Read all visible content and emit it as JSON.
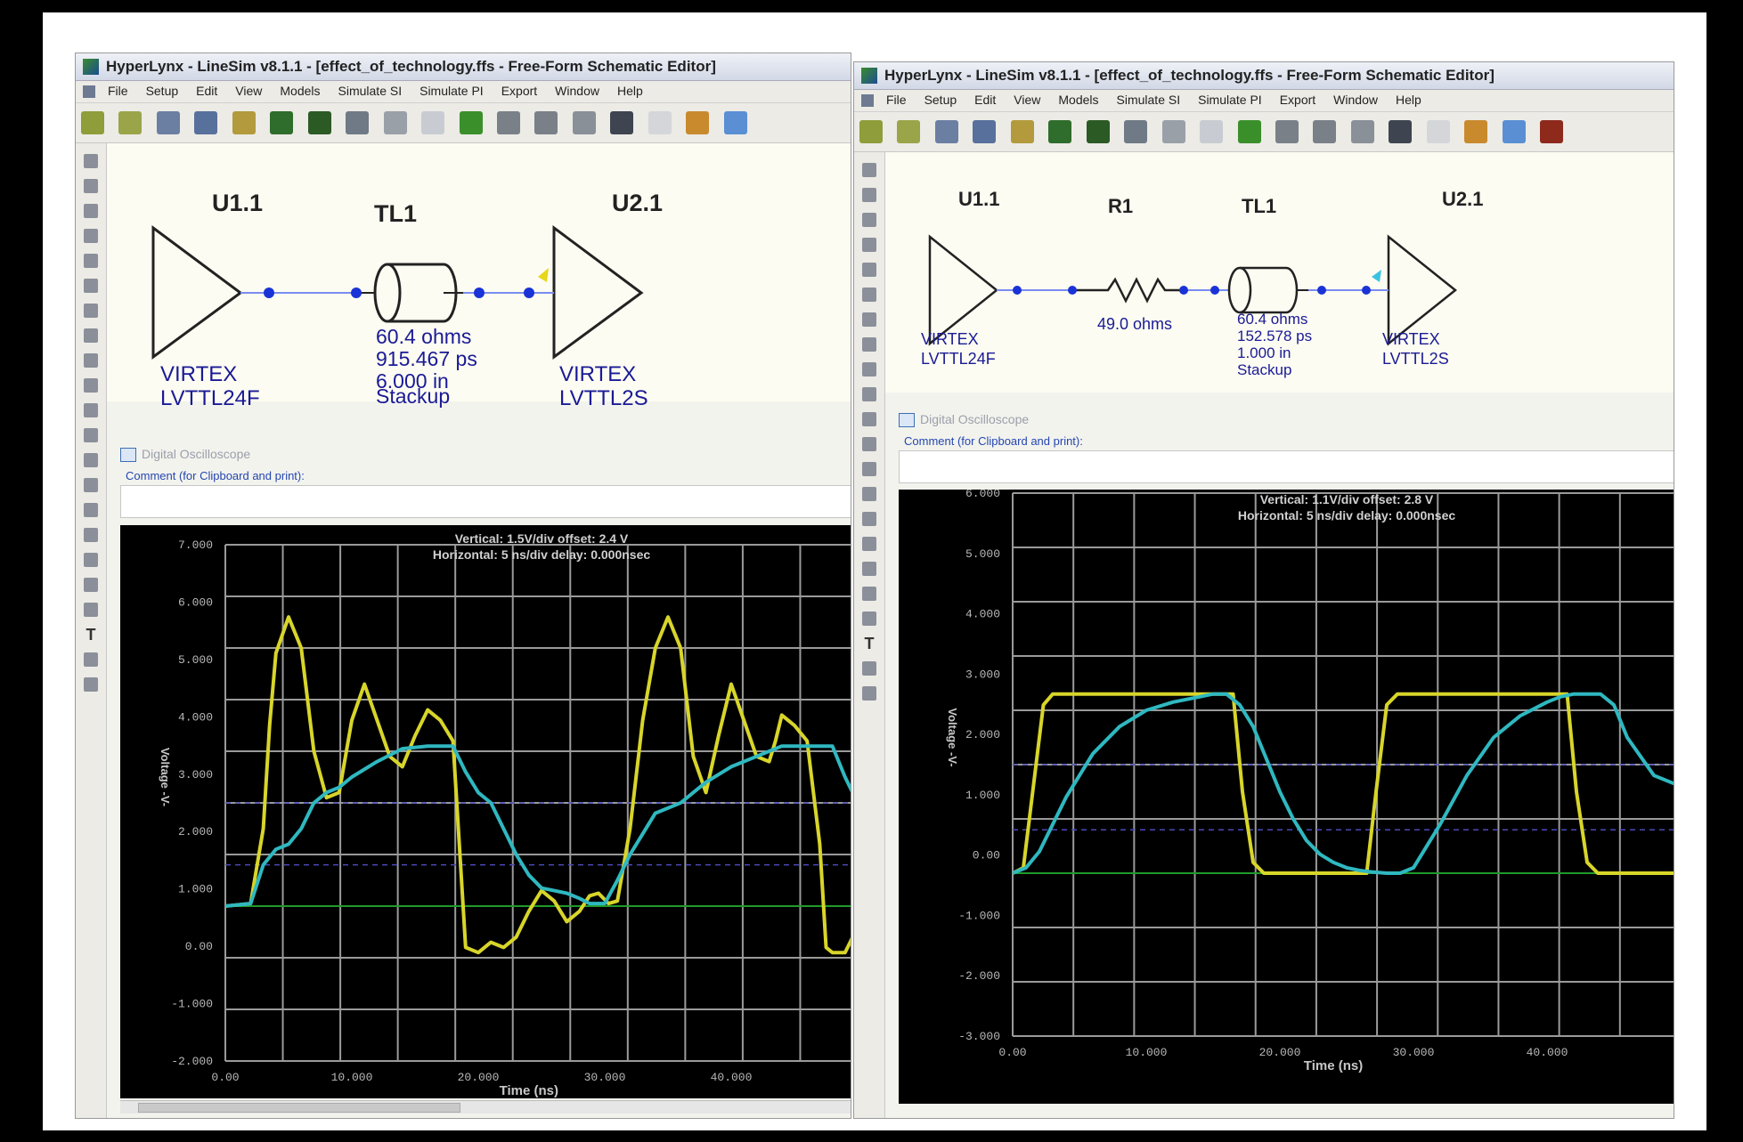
{
  "windows": [
    {
      "title": "HyperLynx - LineSim v8.1.1 - [effect_of_technology.ffs - Free-Form Schematic Editor]",
      "menu": [
        "File",
        "Setup",
        "Edit",
        "View",
        "Models",
        "Simulate SI",
        "Simulate PI",
        "Export",
        "Window",
        "Help"
      ],
      "schematic": {
        "driver_ref": "U1.1",
        "driver_model_1": "VIRTEX",
        "driver_model_2": "LVTTL24F",
        "tline_ref": "TL1",
        "tline_z": "60.4 ohms",
        "tline_delay": "915.467 ps",
        "tline_len": "6.000 in",
        "tline_type": "Stackup",
        "receiver_ref": "U2.1",
        "receiver_model_1": "VIRTEX",
        "receiver_model_2": "LVTTL2S"
      },
      "osc_title": "Digital Oscilloscope",
      "comment_label": "Comment (for Clipboard and print):",
      "scope": {
        "vertical": "Vertical: 1.5V/div offset: 2.4 V",
        "horizontal": "Horizontal: 5 ns/div  delay: 0.000nsec",
        "ylabel": "Voltage -V-",
        "xlabel": "Time (ns)"
      },
      "chart_data": {
        "type": "line",
        "xlabel": "Time (ns)",
        "ylabel": "Voltage -V-",
        "xlim": [
          0,
          50
        ],
        "ylim": [
          -3,
          7
        ],
        "y_ticks": [
          "7.000",
          "6.000",
          "5.000",
          "4.000",
          "3.000",
          "2.000",
          "1.000",
          "0.00",
          "-1.000",
          "-2.000"
        ],
        "x_ticks": [
          "0.00",
          "10.000",
          "20.000",
          "30.000",
          "40.000"
        ],
        "series": [
          {
            "color": "#d8d52a",
            "x": [
              0,
              2,
              3,
              3.5,
              4,
              5,
              6,
              7,
              8,
              9,
              10,
              11,
              12,
              13,
              14,
              15,
              16,
              17,
              18,
              18.5,
              19,
              20,
              21,
              22,
              23,
              24,
              25,
              26,
              27,
              28,
              28.8,
              29.5,
              30.3,
              31,
              32,
              33,
              34,
              35,
              36,
              37,
              38,
              39,
              40,
              41,
              42,
              43,
              43.5,
              44,
              45,
              46,
              47,
              47.5,
              48,
              49,
              50
            ],
            "y": [
              0,
              0.05,
              1.5,
              3.5,
              4.9,
              5.6,
              5,
              3,
              2.1,
              2.2,
              3.6,
              4.3,
              3.6,
              2.9,
              2.7,
              3.3,
              3.8,
              3.6,
              3.2,
              1.2,
              -0.8,
              -0.9,
              -0.7,
              -0.8,
              -0.6,
              -0.1,
              0.3,
              0.1,
              -0.3,
              -0.1,
              0.2,
              0.25,
              0.05,
              0.1,
              1.5,
              3.6,
              5,
              5.6,
              5,
              2.9,
              2.2,
              3.3,
              4.3,
              3.6,
              2.9,
              2.8,
              3.2,
              3.7,
              3.5,
              3.2,
              1.2,
              -0.8,
              -0.9,
              -0.9,
              -0.4
            ]
          },
          {
            "color": "#2fb8c0",
            "x": [
              0,
              2,
              3,
              4,
              5,
              6,
              7,
              8,
              9,
              10,
              12,
              14,
              16,
              18,
              19,
              20,
              21,
              22,
              23,
              24,
              25,
              26,
              27,
              28,
              28.8,
              30,
              31,
              32,
              33,
              34,
              36,
              38,
              40,
              42,
              44,
              46,
              48,
              49,
              50
            ],
            "y": [
              0,
              0.05,
              0.8,
              1.1,
              1.2,
              1.5,
              2.0,
              2.2,
              2.3,
              2.5,
              2.8,
              3.05,
              3.1,
              3.1,
              2.6,
              2.2,
              2.0,
              1.5,
              1.0,
              0.6,
              0.35,
              0.3,
              0.25,
              0.15,
              0.05,
              0.05,
              0.5,
              1.0,
              1.4,
              1.8,
              2.0,
              2.4,
              2.7,
              2.9,
              3.1,
              3.1,
              3.1,
              2.5,
              2.0
            ]
          }
        ]
      }
    },
    {
      "title": "HyperLynx - LineSim v8.1.1 - [effect_of_technology.ffs - Free-Form Schematic Editor]",
      "menu": [
        "File",
        "Setup",
        "Edit",
        "View",
        "Models",
        "Simulate SI",
        "Simulate PI",
        "Export",
        "Window",
        "Help"
      ],
      "schematic": {
        "driver_ref": "U1.1",
        "driver_model_1": "VIRTEX",
        "driver_model_2": "LVTTL24F",
        "resistor_ref": "R1",
        "resistor_val": "49.0 ohms",
        "tline_ref": "TL1",
        "tline_z": "60.4 ohms",
        "tline_delay": "152.578 ps",
        "tline_len": "1.000 in",
        "tline_type": "Stackup",
        "receiver_ref": "U2.1",
        "receiver_model_1": "VIRTEX",
        "receiver_model_2": "LVTTL2S"
      },
      "osc_title": "Digital Oscilloscope",
      "comment_label": "Comment (for Clipboard and print):",
      "scope": {
        "vertical": "Vertical: 1.1V/div offset: 2.8 V",
        "horizontal": "Horizontal: 5 ns/div  delay: 0.000nsec",
        "ylabel": "Voltage -V-",
        "xlabel": "Time (ns)"
      },
      "chart_data": {
        "type": "line",
        "xlabel": "Time (ns)",
        "ylabel": "Voltage -V-",
        "xlim": [
          0,
          50
        ],
        "ylim": [
          -3,
          7
        ],
        "y_ticks": [
          "6.000",
          "5.000",
          "4.000",
          "3.000",
          "2.000",
          "1.000",
          "0.00",
          "-1.000",
          "-2.000",
          "-3.000"
        ],
        "x_ticks": [
          "0.00",
          "10.000",
          "20.000",
          "30.000",
          "40.000"
        ],
        "series": [
          {
            "color": "#d8d52a",
            "x": [
              0,
              0.8,
              1.5,
              2.3,
              3,
              5,
              10,
              15,
              16.5,
              17.2,
              18,
              18.8,
              20,
              25,
              26.5,
              27.2,
              28,
              28.8,
              30,
              35,
              40,
              41.5,
              42.2,
              43,
              43.8,
              45,
              46,
              50
            ],
            "y": [
              0,
              0.1,
              1.5,
              3.1,
              3.3,
              3.3,
              3.3,
              3.3,
              3.3,
              1.5,
              0.2,
              0.0,
              0.0,
              0.0,
              0.0,
              1.5,
              3.1,
              3.3,
              3.3,
              3.3,
              3.3,
              3.3,
              1.5,
              0.2,
              0.0,
              0.0,
              0.0,
              0.0
            ]
          },
          {
            "color": "#2fb8c0",
            "x": [
              0,
              1,
              2,
              3,
              4,
              5,
              6,
              8,
              10,
              12,
              14,
              15,
              16,
              17,
              18,
              19,
              20,
              21,
              22,
              23,
              24,
              25,
              26,
              27,
              28,
              29,
              30,
              32,
              34,
              36,
              38,
              40,
              41,
              42,
              43,
              44,
              45,
              46,
              48,
              50
            ],
            "y": [
              0,
              0.1,
              0.4,
              0.9,
              1.4,
              1.8,
              2.2,
              2.7,
              3.0,
              3.15,
              3.25,
              3.3,
              3.3,
              3.1,
              2.7,
              2.1,
              1.5,
              1.0,
              0.6,
              0.35,
              0.2,
              0.1,
              0.05,
              0.02,
              0.0,
              0.0,
              0.1,
              0.9,
              1.8,
              2.5,
              2.9,
              3.15,
              3.25,
              3.3,
              3.3,
              3.3,
              3.1,
              2.5,
              1.8,
              1.6
            ]
          }
        ]
      }
    }
  ]
}
